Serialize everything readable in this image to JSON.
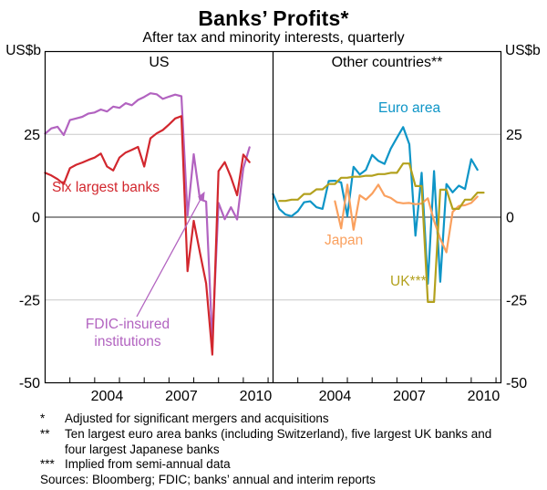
{
  "chart_data": {
    "type": "line",
    "title": "Banks’ Profits*",
    "subtitle": "After tax and minority interests, quarterly",
    "unit_label": "US$b",
    "legend_position": "in-plot-labels",
    "grid": "horizontal-only",
    "y_axis": {
      "min": -50,
      "max": 50,
      "tick_values": [
        25,
        0,
        -25,
        -50
      ],
      "tick_labels": [
        "25",
        "0",
        "-25",
        "-50"
      ],
      "gridline_values": [
        25,
        -25
      ],
      "zero_line": true
    },
    "x_axis": {
      "min": 2002.0,
      "max": 2011.2,
      "minor_tick_years": [
        2003,
        2004,
        2005,
        2006,
        2007,
        2008,
        2009,
        2010,
        2011
      ],
      "year_labels": [
        "2004",
        "2007",
        "2010"
      ]
    },
    "panels": [
      {
        "title": "US",
        "series": [
          {
            "name": "FDIC-insured institutions",
            "color": "#b263c0",
            "x_start": 2002.0,
            "x_step": 0.25,
            "values": [
              25.2,
              26.8,
              27.3,
              24.8,
              29.3,
              29.8,
              30.3,
              31.3,
              31.6,
              32.5,
              31.9,
              33.4,
              33.0,
              34.4,
              33.8,
              35.4,
              36.3,
              37.4,
              37.1,
              35.7,
              36.4,
              37.0,
              36.5,
              0.5,
              19.0,
              5.4,
              4.7,
              -37.5,
              4.3,
              -0.6,
              3.0,
              -0.7,
              14.8,
              21.1
            ]
          },
          {
            "name": "Six largest banks",
            "color": "#d2272e",
            "x_start": 2002.0,
            "x_step": 0.25,
            "values": [
              13.4,
              12.6,
              11.5,
              10.0,
              14.8,
              15.8,
              16.5,
              17.3,
              18.0,
              19.2,
              15.3,
              14.1,
              18.0,
              19.5,
              20.3,
              21.2,
              15.3,
              23.8,
              25.3,
              26.3,
              28.0,
              29.8,
              30.5,
              -16.3,
              -1.1,
              -10.7,
              -20.0,
              -41.5,
              13.9,
              16.6,
              12.1,
              6.6,
              18.9,
              16.6
            ]
          }
        ]
      },
      {
        "title": "Other countries**",
        "series": [
          {
            "name": "Euro area",
            "color": "#0e95c7",
            "x_start": 2002.0,
            "x_step": 0.25,
            "values": [
              7.0,
              2.5,
              0.8,
              0.3,
              1.8,
              4.5,
              4.8,
              3.0,
              2.5,
              10.9,
              11.0,
              10.5,
              0.3,
              15.2,
              12.9,
              14.3,
              18.8,
              17.0,
              16.1,
              20.7,
              24.0,
              27.2,
              22.0,
              -5.6,
              13.4,
              -20.1,
              13.9,
              -19.5,
              10.0,
              7.5,
              9.5,
              8.5,
              17.5,
              14.3
            ]
          },
          {
            "name": "Japan",
            "color": "#faa05e",
            "x_start": 2004.5,
            "x_step": 0.25,
            "values": [
              4.8,
              -3.4,
              9.8,
              -3.8,
              6.6,
              5.3,
              7.1,
              9.8,
              6.5,
              5.8,
              4.5,
              4.2,
              4.3,
              3.9,
              4.1,
              5.7,
              -1.1,
              -6.5,
              -10.6,
              1.6,
              3.4,
              3.6,
              4.3,
              6.2
            ]
          },
          {
            "name": "UK***",
            "color": "#b3a11e",
            "x_start": 2002.25,
            "x_step": 0.25,
            "note": "implied quarterly values from semi-annual data (pairs of equal quarters)",
            "values": [
              4.9,
              4.9,
              5.3,
              5.3,
              7.0,
              7.0,
              8.4,
              8.4,
              10.0,
              10.0,
              11.9,
              11.9,
              12.2,
              12.2,
              12.5,
              12.5,
              13.0,
              13.0,
              13.4,
              13.4,
              16.2,
              16.2,
              9.4,
              9.4,
              -25.6,
              -25.6,
              8.3,
              8.3,
              2.5,
              2.5,
              5.3,
              5.3,
              7.4,
              7.4
            ]
          }
        ]
      }
    ],
    "colors": {
      "gridline": "#c9c9c9",
      "zero_line": "#6e6e6e",
      "frame": "#000000"
    }
  },
  "footnotes": {
    "items": [
      {
        "marker": "*",
        "text": "Adjusted for significant mergers and acquisitions"
      },
      {
        "marker": "**",
        "text": "Ten largest euro area banks (including Switzerland), five largest UK banks and four largest Japanese banks"
      },
      {
        "marker": "***",
        "text": "Implied from semi-annual data"
      }
    ],
    "sources": "Sources: Bloomberg; FDIC; banks’ annual and interim reports"
  }
}
